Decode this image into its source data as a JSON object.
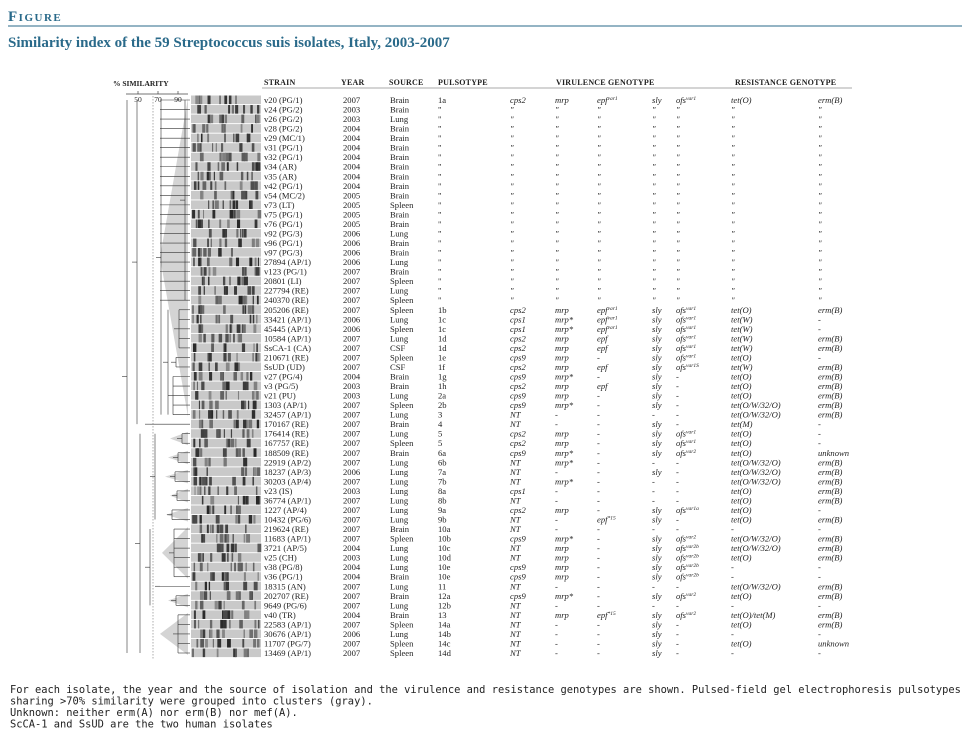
{
  "header": {
    "label": "Figure",
    "title": "Similarity index of the 59 Streptococcus suis isolates, Italy, 2003-2007"
  },
  "similarity_axis": {
    "label": "% SIMILARITY",
    "ticks": [
      50,
      70,
      90
    ]
  },
  "table": {
    "columns": [
      "STRAIN",
      "YEAR",
      "SOURCE",
      "PULSOTYPE",
      "VIRULENCE GENOTYPE",
      "RESISTANCE GENOTYPE"
    ],
    "rows": [
      [
        "v20 (PG/1)",
        2007,
        "Brain",
        "1a",
        "cps2",
        "mrp",
        [
          "epf",
          "var1"
        ],
        "sly",
        [
          "ofs",
          "var1"
        ],
        "tet(O)",
        "erm(B)"
      ],
      [
        "v24 (PG/2)",
        2003,
        "Brain",
        "\"",
        "\"",
        "\"",
        "\"",
        "\"",
        "\"",
        "\"",
        "\""
      ],
      [
        "v26 (PG/2)",
        2003,
        "Lung",
        "\"",
        "\"",
        "\"",
        "\"",
        "\"",
        "\"",
        "\"",
        "\""
      ],
      [
        "v28 (PG/2)",
        2004,
        "Brain",
        "\"",
        "\"",
        "\"",
        "\"",
        "\"",
        "\"",
        "\"",
        "\""
      ],
      [
        "v29 (MC/1)",
        2004,
        "Brain",
        "\"",
        "\"",
        "\"",
        "\"",
        "\"",
        "\"",
        "\"",
        "\""
      ],
      [
        "v31 (PG/1)",
        2004,
        "Brain",
        "\"",
        "\"",
        "\"",
        "\"",
        "\"",
        "\"",
        "\"",
        "\""
      ],
      [
        "v32 (PG/1)",
        2004,
        "Brain",
        "\"",
        "\"",
        "\"",
        "\"",
        "\"",
        "\"",
        "\"",
        "\""
      ],
      [
        "v34 (AR)",
        2004,
        "Brain",
        "\"",
        "\"",
        "\"",
        "\"",
        "\"",
        "\"",
        "\"",
        "\""
      ],
      [
        "v35 (AR)",
        2004,
        "Brain",
        "\"",
        "\"",
        "\"",
        "\"",
        "\"",
        "\"",
        "\"",
        "\""
      ],
      [
        "v42 (PG/1)",
        2004,
        "Brain",
        "\"",
        "\"",
        "\"",
        "\"",
        "\"",
        "\"",
        "\"",
        "\""
      ],
      [
        "v54 (MC/2)",
        2005,
        "Brain",
        "\"",
        "\"",
        "\"",
        "\"",
        "\"",
        "\"",
        "\"",
        "\""
      ],
      [
        "v73 (LT)",
        2005,
        "Spleen",
        "\"",
        "\"",
        "\"",
        "\"",
        "\"",
        "\"",
        "\"",
        "\""
      ],
      [
        "v75 (PG/1)",
        2005,
        "Brain",
        "\"",
        "\"",
        "\"",
        "\"",
        "\"",
        "\"",
        "\"",
        "\""
      ],
      [
        "v76 (PG/1)",
        2005,
        "Brain",
        "\"",
        "\"",
        "\"",
        "\"",
        "\"",
        "\"",
        "\"",
        "\""
      ],
      [
        "v92 (PG/3)",
        2006,
        "Lung",
        "\"",
        "\"",
        "\"",
        "\"",
        "\"",
        "\"",
        "\"",
        "\""
      ],
      [
        "v96 (PG/1)",
        2006,
        "Brain",
        "\"",
        "\"",
        "\"",
        "\"",
        "\"",
        "\"",
        "\"",
        "\""
      ],
      [
        "v97 (PG/3)",
        2006,
        "Brain",
        "\"",
        "\"",
        "\"",
        "\"",
        "\"",
        "\"",
        "\"",
        "\""
      ],
      [
        "27894 (AP/1)",
        2006,
        "Lung",
        "\"",
        "\"",
        "\"",
        "\"",
        "\"",
        "\"",
        "\"",
        "\""
      ],
      [
        "v123 (PG/1)",
        2007,
        "Brain",
        "\"",
        "\"",
        "\"",
        "\"",
        "\"",
        "\"",
        "\"",
        "\""
      ],
      [
        "20801 (LI)",
        2007,
        "Spleen",
        "\"",
        "\"",
        "\"",
        "\"",
        "\"",
        "\"",
        "\"",
        "\""
      ],
      [
        "227794 (RE)",
        2007,
        "Lung",
        "\"",
        "\"",
        "\"",
        "\"",
        "\"",
        "\"",
        "\"",
        "\""
      ],
      [
        "240370 (RE)",
        2007,
        "Spleen",
        "\"",
        "\"",
        "\"",
        "\"",
        "\"",
        "\"",
        "\"",
        "\""
      ],
      [
        "205206 (RE)",
        2007,
        "Spleen",
        "1b",
        "cps2",
        "mrp",
        [
          "epf",
          "var1"
        ],
        "sly",
        [
          "ofs",
          "var1"
        ],
        "tet(O)",
        "erm(B)"
      ],
      [
        "33421 (AP/1)",
        2006,
        "Lung",
        "1c",
        "cps1",
        "mrp*",
        [
          "epf",
          "var1"
        ],
        "sly",
        [
          "ofs",
          "var1"
        ],
        "tet(W)",
        "-"
      ],
      [
        "45445 (AP/1)",
        2006,
        "Spleen",
        "1c",
        "cps1",
        "mrp*",
        [
          "epf",
          "var1"
        ],
        "sly",
        [
          "ofs",
          "var1"
        ],
        "tet(W)",
        "-"
      ],
      [
        "10584 (AP/1)",
        2007,
        "Lung",
        "1d",
        "cps2",
        "mrp",
        "epf",
        "sly",
        [
          "ofs",
          "var1"
        ],
        "tet(W)",
        "erm(B)"
      ],
      [
        "SsCA-1 (CA)",
        2007,
        "CSF",
        "1d",
        "cps2",
        "mrp",
        "epf",
        "sly",
        [
          "ofs",
          "var1"
        ],
        "tet(W)",
        "erm(B)"
      ],
      [
        "210671 (RE)",
        2007,
        "Spleen",
        "1e",
        "cps9",
        "mrp",
        "-",
        "sly",
        [
          "ofs",
          "var1"
        ],
        "tet(O)",
        "-"
      ],
      [
        "SsUD (UD)",
        2007,
        "CSF",
        "1f",
        "cps2",
        "mrp",
        "epf",
        "sly",
        [
          "ofs",
          "var1S"
        ],
        "tet(W)",
        "erm(B)"
      ],
      [
        "v27 (PG/4)",
        2004,
        "Brain",
        "1g",
        "cps9",
        "mrp*",
        "-",
        "sly",
        "-",
        "tet(O)",
        "erm(B)"
      ],
      [
        "v3 (PG/5)",
        2003,
        "Brain",
        "1h",
        "cps2",
        "mrp",
        "epf",
        "sly",
        "-",
        "tet(O)",
        "erm(B)"
      ],
      [
        "v21 (PU)",
        2003,
        "Lung",
        "2a",
        "cps9",
        "mrp",
        "-",
        "sly",
        "-",
        "tet(O)",
        "erm(B)"
      ],
      [
        "1303 (AP/1)",
        2007,
        "Spleen",
        "2b",
        "cps9",
        "mrp*",
        "-",
        "sly",
        "-",
        "tet(O/W/32/O)",
        "erm(B)"
      ],
      [
        "32457 (AP/1)",
        2007,
        "Lung",
        "3",
        "NT",
        "-",
        "-",
        "-",
        "-",
        "tet(O/W/32/O)",
        "erm(B)"
      ],
      [
        "170167 (RE)",
        2007,
        "Brain",
        "4",
        "NT",
        "-",
        "-",
        "sly",
        "-",
        "tet(M)",
        "-"
      ],
      [
        "176414 (RE)",
        2007,
        "Lung",
        "5",
        "cps2",
        "mrp",
        "-",
        "sly",
        [
          "ofs",
          "var1"
        ],
        "tet(O)",
        "-"
      ],
      [
        "167757 (RE)",
        2007,
        "Spleen",
        "5",
        "cps2",
        "mrp",
        "-",
        "sly",
        [
          "ofs",
          "var1"
        ],
        "tet(O)",
        "-"
      ],
      [
        "188509 (RE)",
        2007,
        "Brain",
        "6a",
        "cps9",
        "mrp*",
        "-",
        "sly",
        [
          "ofs",
          "var2"
        ],
        "tet(O)",
        "unknown"
      ],
      [
        "22919 (AP/2)",
        2007,
        "Lung",
        "6b",
        "NT",
        "mrp*",
        "-",
        "-",
        "-",
        "tet(O/W/32/O)",
        "erm(B)"
      ],
      [
        "18237 (AP/3)",
        2006,
        "Lung",
        "7a",
        "NT",
        "-",
        "-",
        "sly",
        "-",
        "tet(O/W/32/O)",
        "erm(B)"
      ],
      [
        "30203 (AP/4)",
        2007,
        "Lung",
        "7b",
        "NT",
        "mrp*",
        "-",
        "-",
        "-",
        "tet(O/W/32/O)",
        "erm(B)"
      ],
      [
        "v23 (IS)",
        2003,
        "Lung",
        "8a",
        "cps1",
        "-",
        "-",
        "-",
        "-",
        "tet(O)",
        "erm(B)"
      ],
      [
        "36774 (AP/1)",
        2007,
        "Lung",
        "8b",
        "NT",
        "-",
        "-",
        "-",
        "-",
        "tet(O)",
        "erm(B)"
      ],
      [
        "1227 (AP/4)",
        2007,
        "Lung",
        "9a",
        "cps2",
        "mrp",
        "-",
        "sly",
        [
          "ofs",
          "var1a"
        ],
        "tet(O)",
        "-"
      ],
      [
        "10432 (PG/6)",
        2007,
        "Lung",
        "9b",
        "NT",
        "-",
        [
          "epf",
          "*15"
        ],
        "sly",
        "-",
        "tet(O)",
        "erm(B)"
      ],
      [
        "219624 (RE)",
        2007,
        "Brain",
        "10a",
        "NT",
        "-",
        "-",
        "-",
        "-",
        "-",
        "-"
      ],
      [
        "11683 (AP/1)",
        2007,
        "Spleen",
        "10b",
        "cps9",
        "mrp*",
        "-",
        "sly",
        [
          "ofs",
          "var2"
        ],
        "tet(O/W/32/O)",
        "erm(B)"
      ],
      [
        "3721 (AP/5)",
        2004,
        "Lung",
        "10c",
        "NT",
        "mrp",
        "-",
        "sly",
        [
          "ofs",
          "var2b"
        ],
        "tet(O/W/32/O)",
        "erm(B)"
      ],
      [
        "v25 (CH)",
        2003,
        "Lung",
        "10d",
        "NT",
        "mrp",
        "-",
        "sly",
        [
          "ofs",
          "var2b"
        ],
        "tet(O)",
        "erm(B)"
      ],
      [
        "v38 (PG/8)",
        2004,
        "Lung",
        "10e",
        "cps9",
        "mrp",
        "-",
        "sly",
        [
          "ofs",
          "var2b"
        ],
        "-",
        "-"
      ],
      [
        "v36 (PG/1)",
        2004,
        "Brain",
        "10e",
        "cps9",
        "mrp",
        "-",
        "sly",
        [
          "ofs",
          "var2b"
        ],
        "-",
        "-"
      ],
      [
        "18315 (AN)",
        2007,
        "Lung",
        "11",
        "NT",
        "-",
        "-",
        "-",
        "-",
        "tet(O/W/32/O)",
        "erm(B)"
      ],
      [
        "202707 (RE)",
        2007,
        "Brain",
        "12a",
        "cps9",
        "mrp*",
        "-",
        "sly",
        [
          "ofs",
          "var2"
        ],
        "tet(O)",
        "erm(B)"
      ],
      [
        "9649 (PG/6)",
        2007,
        "Lung",
        "12b",
        "NT",
        "-",
        "-",
        "-",
        "-",
        "-",
        "-"
      ],
      [
        "v40 (TR)",
        2004,
        "Brain",
        "13",
        "NT",
        "mrp",
        [
          "epf",
          "*15"
        ],
        "sly",
        [
          "ofs",
          "var2"
        ],
        "tet(O)/tet(M)",
        "erm(B)"
      ],
      [
        "22583 (AP/1)",
        2007,
        "Spleen",
        "14a",
        "NT",
        "-",
        "-",
        "sly",
        "-",
        "tet(O)",
        "erm(B)"
      ],
      [
        "30676 (AP/1)",
        2006,
        "Lung",
        "14b",
        "NT",
        "-",
        "-",
        "sly",
        "-",
        "-",
        "-"
      ],
      [
        "11707 (PG/7)",
        2007,
        "Spleen",
        "14c",
        "NT",
        "-",
        "-",
        "sly",
        "-",
        "tet(O)",
        "unknown"
      ],
      [
        "13469 (AP/1)",
        2007,
        "Spleen",
        "14d",
        "NT",
        "-",
        "-",
        "sly",
        "-",
        "-",
        "-"
      ]
    ]
  },
  "caption": [
    "For each isolate, the year and the source of isolation and the virulence and resistance genotypes are shown. Pulsed-field gel electrophoresis pulsotypes",
    "sharing >70% similarity were grouped into clusters (gray).",
    "Unknown: neither erm(A) nor erm(B) nor mef(A).",
    "ScCA-1 and SsUD are the two human isolates"
  ]
}
